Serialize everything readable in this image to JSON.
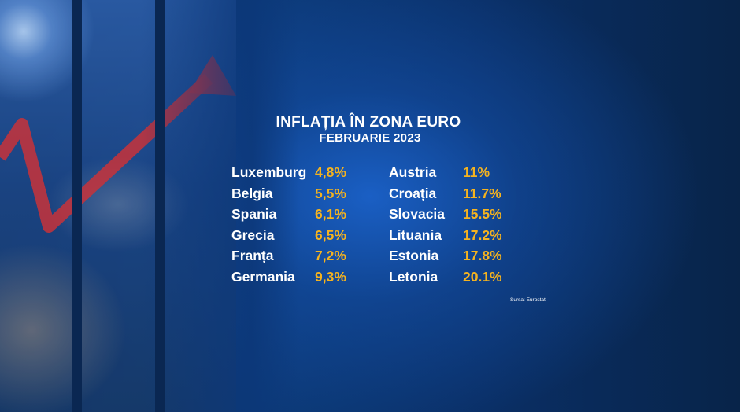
{
  "title": "INFLAȚIA ÎN ZONA EURO",
  "subtitle": "FEBRUARIE 2023",
  "left_column": [
    {
      "country": "Luxemburg",
      "value": "4,8%"
    },
    {
      "country": "Belgia",
      "value": "5,5%"
    },
    {
      "country": "Spania",
      "value": "6,1%"
    },
    {
      "country": "Grecia",
      "value": "6,5%"
    },
    {
      "country": "Franța",
      "value": "7,2%"
    },
    {
      "country": "Germania",
      "value": "9,3%"
    }
  ],
  "right_column": [
    {
      "country": "Austria",
      "value": "11%"
    },
    {
      "country": "Croația",
      "value": "11.7%"
    },
    {
      "country": "Slovacia",
      "value": "15.5%"
    },
    {
      "country": "Lituania",
      "value": "17.2%"
    },
    {
      "country": "Estonia",
      "value": "17.8%"
    },
    {
      "country": "Letonia",
      "value": "20.1%"
    }
  ],
  "source": "Sursa: Eurostat",
  "colors": {
    "accent_value": "#f5b31f",
    "text": "#ffffff",
    "background": "#0c3a78",
    "arrow": "#c8323a"
  }
}
